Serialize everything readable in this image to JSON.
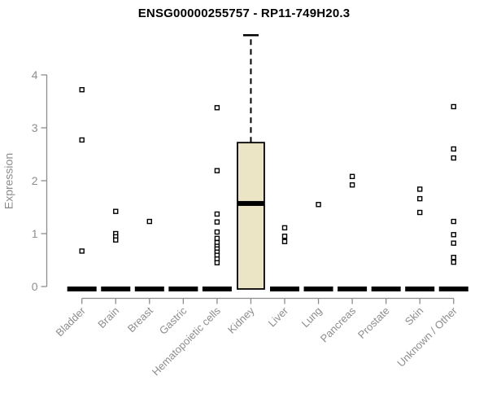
{
  "chart_data": {
    "type": "boxplot",
    "title": "ENSG00000255757 - RP11-749H20.3",
    "xlabel": "",
    "ylabel": "Expression",
    "ylim": [
      0,
      4.8
    ],
    "yticks": [
      0,
      1,
      2,
      3,
      4
    ],
    "grid": false,
    "legend": "none",
    "categories": [
      "Bladder",
      "Brain",
      "Breast",
      "Gastric",
      "Hematopoietic cells",
      "Kidney",
      "Liver",
      "Lung",
      "Pancreas",
      "Prostate",
      "Skin",
      "Unknown / Other"
    ],
    "boxes": [
      {
        "category": "Bladder",
        "q1": 0,
        "median": 0,
        "q3": 0,
        "whisker_low": 0,
        "whisker_high": 0,
        "collapsed": true,
        "points": [
          3.72,
          2.77,
          0.67
        ]
      },
      {
        "category": "Brain",
        "q1": 0,
        "median": 0,
        "q3": 0,
        "whisker_low": 0,
        "whisker_high": 0,
        "collapsed": true,
        "points": [
          1.42,
          1.0,
          0.94,
          0.88
        ]
      },
      {
        "category": "Breast",
        "q1": 0,
        "median": 0,
        "q3": 0,
        "whisker_low": 0,
        "whisker_high": 0,
        "collapsed": true,
        "points": [
          1.23
        ]
      },
      {
        "category": "Gastric",
        "q1": 0,
        "median": 0,
        "q3": 0,
        "whisker_low": 0,
        "whisker_high": 0,
        "collapsed": true,
        "points": []
      },
      {
        "category": "Hematopoietic cells",
        "q1": 0,
        "median": 0,
        "q3": 0,
        "whisker_low": 0,
        "whisker_high": 0,
        "collapsed": true,
        "points": [
          3.38,
          2.19,
          1.37,
          1.22,
          1.03,
          0.91,
          0.83,
          0.76,
          0.71,
          0.65,
          0.59,
          0.52,
          0.45
        ]
      },
      {
        "category": "Kidney",
        "q1": 0,
        "median": 1.57,
        "q3": 2.72,
        "whisker_low": 0,
        "whisker_high": 4.75,
        "collapsed": false,
        "points": []
      },
      {
        "category": "Liver",
        "q1": 0,
        "median": 0,
        "q3": 0,
        "whisker_low": 0,
        "whisker_high": 0,
        "collapsed": true,
        "points": [
          1.11,
          0.95,
          0.85
        ]
      },
      {
        "category": "Lung",
        "q1": 0,
        "median": 0,
        "q3": 0,
        "whisker_low": 0,
        "whisker_high": 0,
        "collapsed": true,
        "points": [
          1.55
        ]
      },
      {
        "category": "Pancreas",
        "q1": 0,
        "median": 0,
        "q3": 0,
        "whisker_low": 0,
        "whisker_high": 0,
        "collapsed": true,
        "points": [
          2.08,
          1.92
        ]
      },
      {
        "category": "Prostate",
        "q1": 0,
        "median": 0,
        "q3": 0,
        "whisker_low": 0,
        "whisker_high": 0,
        "collapsed": true,
        "points": []
      },
      {
        "category": "Skin",
        "q1": 0,
        "median": 0,
        "q3": 0,
        "whisker_low": 0,
        "whisker_high": 0,
        "collapsed": true,
        "points": [
          1.84,
          1.66,
          1.4
        ]
      },
      {
        "category": "Unknown / Other",
        "q1": 0,
        "median": 0,
        "q3": 0,
        "whisker_low": 0,
        "whisker_high": 0,
        "collapsed": true,
        "points": [
          3.4,
          2.6,
          2.43,
          1.23,
          0.98,
          0.82,
          0.55,
          0.46
        ]
      }
    ],
    "colors": {
      "box_fill": "#EBE5C6",
      "box_stroke": "#000000",
      "median": "#000000",
      "point_stroke": "#000000",
      "point_fill": "#FFFFFF",
      "axis": "#8D8D8D",
      "tick_label": "#8D8D8D",
      "title": "#000000",
      "background": "#FFFFFF"
    }
  }
}
